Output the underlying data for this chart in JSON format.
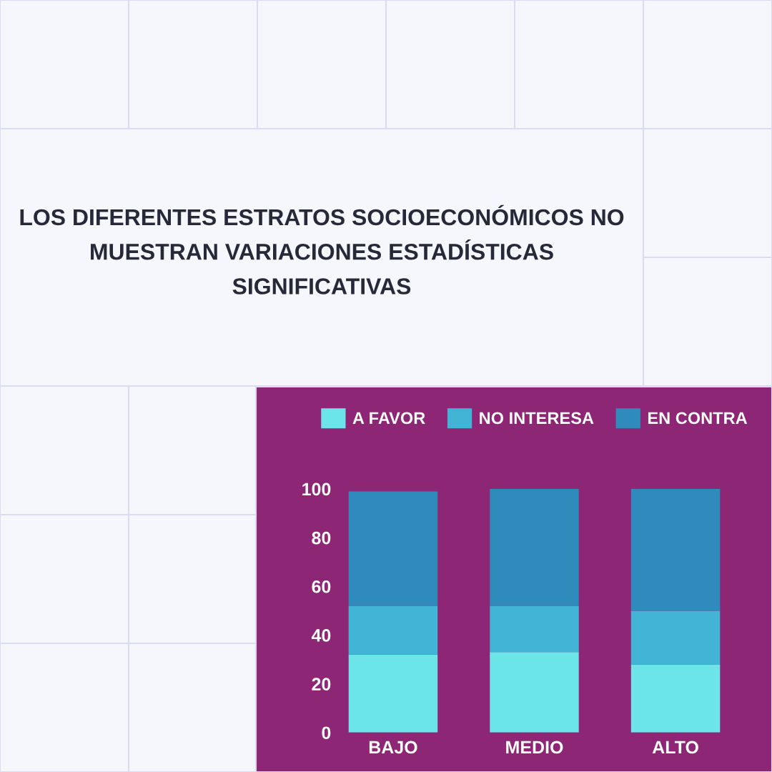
{
  "chart_data": {
    "type": "bar",
    "title": "LOS DIFERENTES ESTRATOS SOCIOECONÓMICOS NO MUESTRAN VARIACIONES ESTADÍSTICAS SIGNIFICATIVAS",
    "categories": [
      "BAJO",
      "MEDIO",
      "ALTO"
    ],
    "series": [
      {
        "name": "A FAVOR",
        "color": "#6ce5e8",
        "values": [
          32,
          33,
          28
        ]
      },
      {
        "name": "NO INTERESA",
        "color": "#42b5d6",
        "values": [
          20,
          19,
          22
        ]
      },
      {
        "name": "EN CONTRA",
        "color": "#2e8bbb",
        "values": [
          47,
          48,
          50
        ]
      }
    ],
    "stacked": true,
    "ylim": [
      0,
      100
    ],
    "yticks": [
      0,
      20,
      40,
      60,
      80,
      100
    ],
    "legend": "top"
  }
}
